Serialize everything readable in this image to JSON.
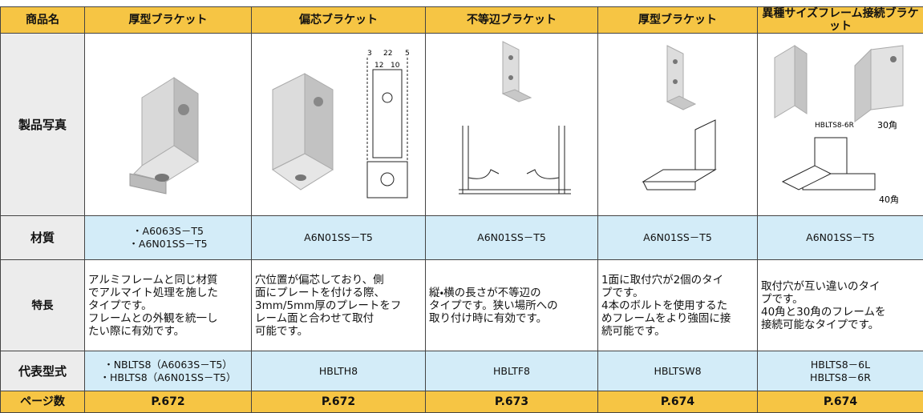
{
  "table": {
    "header_label": "商品名",
    "columns": [
      "厚型ブラケット",
      "偏芯ブラケット",
      "不等辺ブラケット",
      "厚型ブラケット",
      "異種サイズフレーム接続ブラケット"
    ],
    "photo_label": "製品写真",
    "dimension_labels": [
      "3",
      "22",
      "5",
      "12",
      "10"
    ],
    "callouts": [
      "HBLTS8-6R",
      "30角",
      "40角"
    ],
    "rows": [
      {
        "label": "材質",
        "cells": [
          [
            "・A6063S－T5",
            "・A6N01SS－T5"
          ],
          [
            "A6N01SS－T5"
          ],
          [
            "A6N01SS－T5"
          ],
          [
            "A6N01SS－T5"
          ],
          [
            "A6N01SS－T5"
          ]
        ]
      },
      {
        "label": "特長",
        "cells": [
          [
            "アルミフレームと同じ材質",
            "でアルマイト処理を施した",
            "タイプです。",
            "フレームとの外観を統一し",
            "たい際に有効です。"
          ],
          [
            "穴位置が偏芯しており、側",
            "面にプレートを付ける際、",
            "3mm/5mm厚のプレートをフ",
            "レーム面と合わせて取付",
            "可能です。"
          ],
          [
            "縦・横の長さが不等辺の",
            "タイプです。狭い場所への",
            "取り付け時に有効です。"
          ],
          [
            "1面に取付穴が2個のタイ",
            "プです。",
            "4本のボルトを使用するた",
            "めフレームをより強固に接",
            "続可能です。"
          ],
          [
            "取付穴が互い違いのタイ",
            "プです。",
            "40角と30角のフレームを",
            "接続可能なタイプです。"
          ]
        ]
      },
      {
        "label": "代表型式",
        "cells": [
          [
            "・NBLTS8（A6063S－T5）",
            "・HBLTS8（A6N01SS－T5）"
          ],
          [
            "HBLTH8"
          ],
          [
            "HBLTF8"
          ],
          [
            "HBLTSW8"
          ],
          [
            "HBLTS8－6L",
            "HBLTS8－6R"
          ]
        ]
      },
      {
        "label": "ページ数",
        "cells": [
          [
            "P.672"
          ],
          [
            "P.672"
          ],
          [
            "P.673"
          ],
          [
            "P.674"
          ],
          [
            "P.674"
          ]
        ]
      }
    ]
  }
}
